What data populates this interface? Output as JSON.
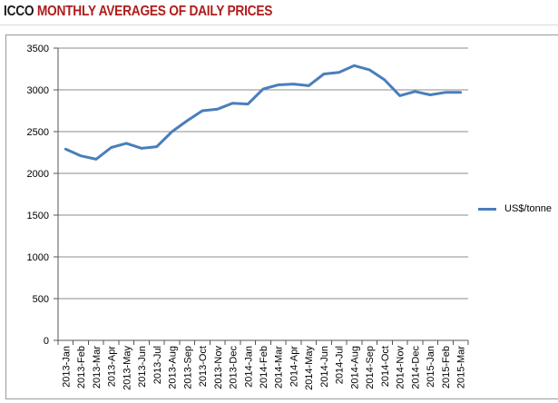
{
  "header": {
    "org": "ICCO",
    "title": "MONTHLY AVERAGES OF DAILY PRICES"
  },
  "colors": {
    "series": "#4a7ebb",
    "title_accent": "#b01c1c",
    "grid": "#8c8c8c"
  },
  "chart_data": {
    "type": "line",
    "title": "",
    "xlabel": "",
    "ylabel": "",
    "ylim": [
      0,
      3500
    ],
    "yticks": [
      0,
      500,
      1000,
      1500,
      2000,
      2500,
      3000,
      3500
    ],
    "grid": true,
    "legend_position": "right",
    "categories": [
      "2013-Jan",
      "2013-Feb",
      "2013-Mar",
      "2013-Apr",
      "2013-May",
      "2013-Jun",
      "2013-Jul",
      "2013-Aug",
      "2013-Sep",
      "2013-Oct",
      "2013-Nov",
      "2013-Dec",
      "2014-Jan",
      "2014-Feb",
      "2014-Mar",
      "2014-Apr",
      "2014-May",
      "2014-Jun",
      "2014-Jul",
      "2014-Aug",
      "2014-Sep",
      "2014-Oct",
      "2014-Nov",
      "2014-Dec",
      "2015-Jan",
      "2015-Feb",
      "2015-Mar"
    ],
    "series": [
      {
        "name": "US$/tonne",
        "values": [
          2290,
          2210,
          2170,
          2310,
          2360,
          2300,
          2320,
          2500,
          2630,
          2750,
          2770,
          2840,
          2830,
          3010,
          3060,
          3070,
          3050,
          3190,
          3210,
          3290,
          3240,
          3120,
          2930,
          2980,
          2940,
          2970,
          2970
        ]
      }
    ]
  }
}
